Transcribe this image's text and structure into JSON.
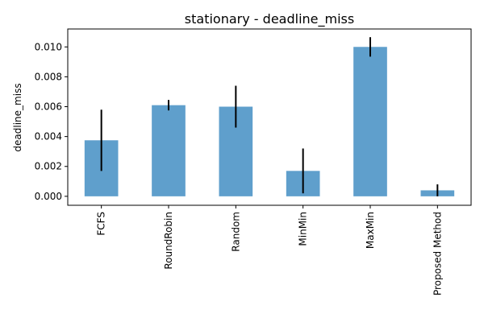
{
  "chart_data": {
    "type": "bar",
    "title": "stationary - deadline_miss",
    "xlabel": "",
    "ylabel": "deadline_miss",
    "categories": [
      "FCFS",
      "RoundRobin",
      "Random",
      "MinMin",
      "MaxMin",
      "Proposed Method"
    ],
    "values": [
      0.00375,
      0.0061,
      0.006,
      0.0017,
      0.01,
      0.0004
    ],
    "errors": [
      0.00205,
      0.00035,
      0.0014,
      0.0015,
      0.00065,
      0.0004
    ],
    "ylim": [
      -0.0006,
      0.0112
    ],
    "yticks": [
      0.0,
      0.002,
      0.004,
      0.006,
      0.008,
      0.01
    ],
    "ytick_labels": [
      "0.000",
      "0.002",
      "0.004",
      "0.006",
      "0.008",
      "0.010"
    ],
    "bar_color": "#5f9fcc",
    "error_color": "#000000",
    "grid": false,
    "legend": "none"
  }
}
